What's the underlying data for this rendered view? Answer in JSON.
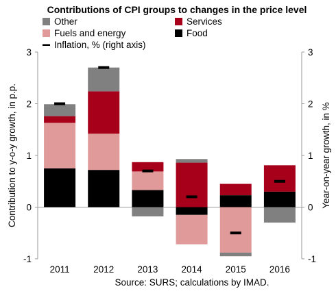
{
  "chart_data": {
    "type": "bar",
    "stacked": true,
    "title": "Contributions of CPI groups to changes in the price level",
    "ylabel_left": "Contribution to y-o-y growth, in p.p.",
    "ylabel_right": "Year-on-year growth, in %",
    "source": "Source: SURS; calculations by IMAD.",
    "categories": [
      "2011",
      "2012",
      "2013",
      "2014",
      "2015",
      "2016"
    ],
    "ylim": [
      -1,
      3
    ],
    "yticks": [
      "-1",
      "0",
      "1",
      "2",
      "3"
    ],
    "yticks_right": [
      "-1",
      "0",
      "1",
      "2",
      "3"
    ],
    "grid": false,
    "legend_position": "top",
    "series": [
      {
        "name": "Food",
        "color": "#000000",
        "values": [
          0.75,
          0.72,
          0.33,
          -0.15,
          0.23,
          0.3
        ]
      },
      {
        "name": "Fuels and energy",
        "color": "#e09a9a",
        "values": [
          0.88,
          0.7,
          0.36,
          -0.57,
          -0.88,
          0.0
        ]
      },
      {
        "name": "Services",
        "color": "#a6001a",
        "values": [
          0.13,
          0.82,
          0.18,
          0.86,
          0.22,
          0.51
        ]
      },
      {
        "name": "Other",
        "color": "#808080",
        "values": [
          0.23,
          0.46,
          -0.18,
          0.07,
          -0.07,
          -0.3
        ]
      }
    ],
    "inflation": {
      "name": "Inflation, % (right axis)",
      "color": "#000000",
      "values": [
        2.0,
        2.7,
        0.7,
        0.2,
        -0.5,
        0.5
      ]
    },
    "legend": [
      {
        "label": "Other",
        "color": "#808080",
        "kind": "box"
      },
      {
        "label": "Services",
        "color": "#a6001a",
        "kind": "box"
      },
      {
        "label": "Fuels and energy",
        "color": "#e09a9a",
        "kind": "box"
      },
      {
        "label": "Food",
        "color": "#000000",
        "kind": "box"
      },
      {
        "label": "Inflation, % (right axis)",
        "color": "#000000",
        "kind": "dash"
      }
    ]
  }
}
